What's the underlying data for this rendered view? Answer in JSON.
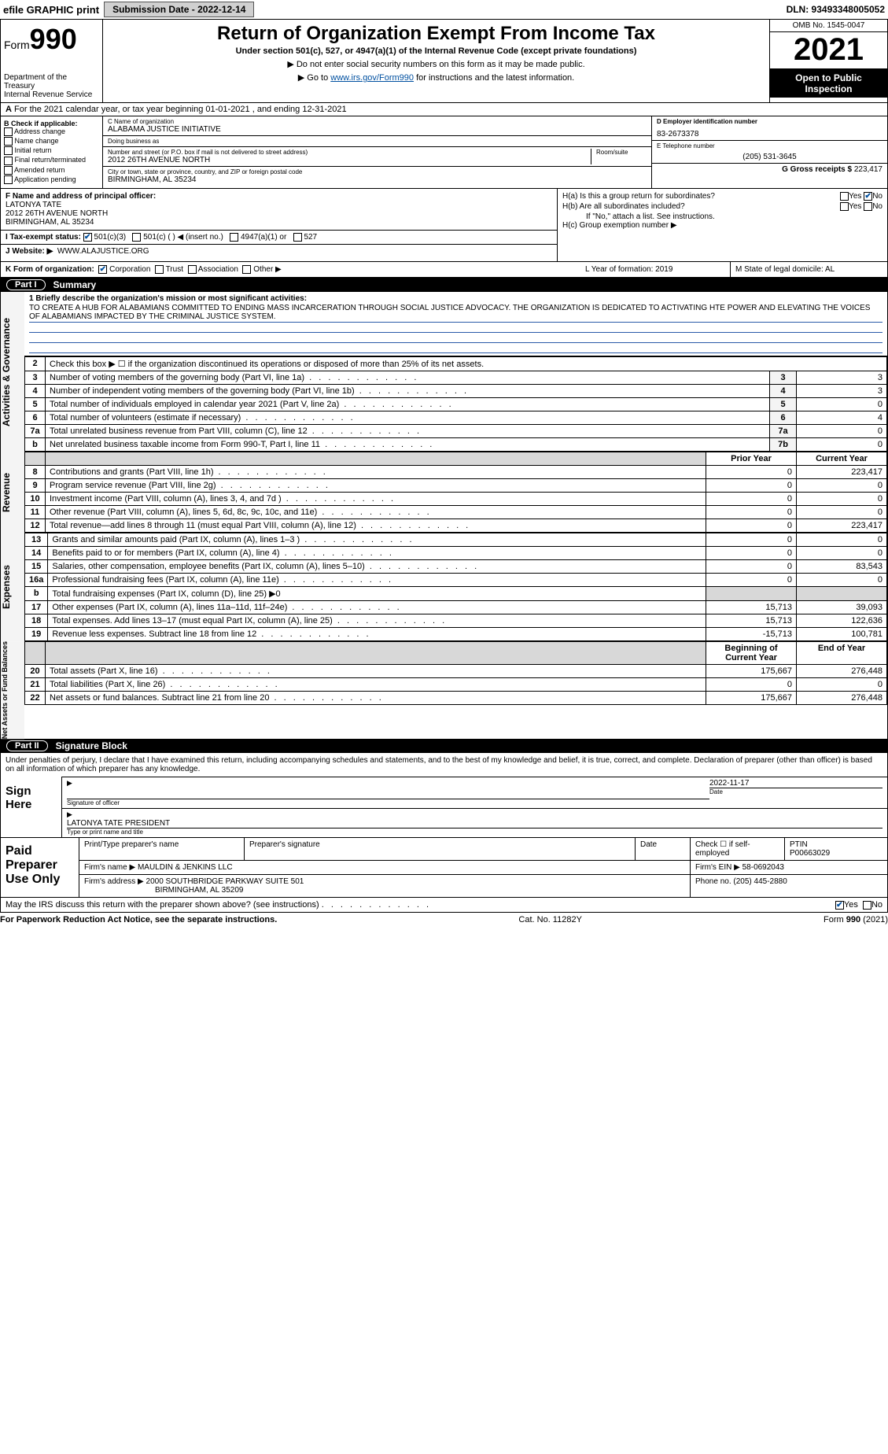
{
  "topbar": {
    "efile": "efile GRAPHIC print",
    "submission_btn": "Submission Date - 2022-12-14",
    "dln": "DLN: 93493348005052"
  },
  "header": {
    "form_prefix": "Form",
    "form_number": "990",
    "dept": "Department of the Treasury",
    "irs": "Internal Revenue Service",
    "title": "Return of Organization Exempt From Income Tax",
    "subtitle": "Under section 501(c), 527, or 4947(a)(1) of the Internal Revenue Code (except private foundations)",
    "note1": "▶ Do not enter social security numbers on this form as it may be made public.",
    "note2_pre": "▶ Go to ",
    "note2_link": "www.irs.gov/Form990",
    "note2_post": " for instructions and the latest information.",
    "omb": "OMB No. 1545-0047",
    "year": "2021",
    "inspect": "Open to Public Inspection"
  },
  "row_a": "For the 2021 calendar year, or tax year beginning 01-01-2021     , and ending 12-31-2021",
  "section_b": {
    "label": "B Check if applicable:",
    "opts": [
      "Address change",
      "Name change",
      "Initial return",
      "Final return/terminated",
      "Amended return",
      "Application pending"
    ]
  },
  "section_c": {
    "name_lbl": "C Name of organization",
    "name": "ALABAMA JUSTICE INITIATIVE",
    "dba_lbl": "Doing business as",
    "dba": "",
    "addr_lbl": "Number and street (or P.O. box if mail is not delivered to street address)",
    "room_lbl": "Room/suite",
    "addr": "2012 26TH AVENUE NORTH",
    "city_lbl": "City or town, state or province, country, and ZIP or foreign postal code",
    "city": "BIRMINGHAM, AL  35234"
  },
  "section_d": {
    "lbl": "D Employer identification number",
    "val": "83-2673378"
  },
  "section_e": {
    "lbl": "E Telephone number",
    "val": "(205) 531-3645"
  },
  "section_g": {
    "lbl": "G Gross receipts $",
    "val": "223,417"
  },
  "section_f": {
    "lbl": "F  Name and address of principal officer:",
    "name": "LATONYA TATE",
    "addr1": "2012 26TH AVENUE NORTH",
    "addr2": "BIRMINGHAM, AL  35234"
  },
  "section_h": {
    "a": "H(a)  Is this a group return for subordinates?",
    "b": "H(b)  Are all subordinates included?",
    "note": "If \"No,\" attach a list. See instructions.",
    "c": "H(c)  Group exemption number ▶"
  },
  "section_i": {
    "lbl": "I  Tax-exempt status:",
    "opts": [
      "501(c)(3)",
      "501(c) (   ) ◀ (insert no.)",
      "4947(a)(1) or",
      "527"
    ]
  },
  "section_j": {
    "lbl": "J  Website: ▶",
    "val": "WWW.ALAJUSTICE.ORG"
  },
  "section_k": {
    "lbl": "K Form of organization:",
    "opts": [
      "Corporation",
      "Trust",
      "Association",
      "Other ▶"
    ],
    "l": "L Year of formation: 2019",
    "m": "M State of legal domicile: AL"
  },
  "part1": {
    "num": "Part I",
    "title": "Summary"
  },
  "mission": {
    "lbl": "1  Briefly describe the organization's mission or most significant activities:",
    "text": "TO CREATE A HUB FOR ALABAMIANS COMMITTED TO ENDING MASS INCARCERATION THROUGH SOCIAL JUSTICE ADVOCACY. THE ORGANIZATION IS DEDICATED TO ACTIVATING HTE POWER AND ELEVATING THE VOICES OF ALABAMIANS IMPACTED BY THE CRIMINAL JUSTICE SYSTEM."
  },
  "governance": {
    "side": "Activities & Governance",
    "rows": [
      {
        "n": "2",
        "t": "Check this box ▶ ☐  if the organization discontinued its operations or disposed of more than 25% of its net assets.",
        "k": "",
        "v": ""
      },
      {
        "n": "3",
        "t": "Number of voting members of the governing body (Part VI, line 1a)",
        "k": "3",
        "v": "3"
      },
      {
        "n": "4",
        "t": "Number of independent voting members of the governing body (Part VI, line 1b)",
        "k": "4",
        "v": "3"
      },
      {
        "n": "5",
        "t": "Total number of individuals employed in calendar year 2021 (Part V, line 2a)",
        "k": "5",
        "v": "0"
      },
      {
        "n": "6",
        "t": "Total number of volunteers (estimate if necessary)",
        "k": "6",
        "v": "4"
      },
      {
        "n": "7a",
        "t": "Total unrelated business revenue from Part VIII, column (C), line 12",
        "k": "7a",
        "v": "0"
      },
      {
        "n": "b",
        "t": "Net unrelated business taxable income from Form 990-T, Part I, line 11",
        "k": "7b",
        "v": "0"
      }
    ]
  },
  "revenue": {
    "side": "Revenue",
    "hdr_prior": "Prior Year",
    "hdr_curr": "Current Year",
    "rows": [
      {
        "n": "8",
        "t": "Contributions and grants (Part VIII, line 1h)",
        "p": "0",
        "c": "223,417"
      },
      {
        "n": "9",
        "t": "Program service revenue (Part VIII, line 2g)",
        "p": "0",
        "c": "0"
      },
      {
        "n": "10",
        "t": "Investment income (Part VIII, column (A), lines 3, 4, and 7d )",
        "p": "0",
        "c": "0"
      },
      {
        "n": "11",
        "t": "Other revenue (Part VIII, column (A), lines 5, 6d, 8c, 9c, 10c, and 11e)",
        "p": "0",
        "c": "0"
      },
      {
        "n": "12",
        "t": "Total revenue—add lines 8 through 11 (must equal Part VIII, column (A), line 12)",
        "p": "0",
        "c": "223,417"
      }
    ]
  },
  "expenses": {
    "side": "Expenses",
    "rows": [
      {
        "n": "13",
        "t": "Grants and similar amounts paid (Part IX, column (A), lines 1–3 )",
        "p": "0",
        "c": "0"
      },
      {
        "n": "14",
        "t": "Benefits paid to or for members (Part IX, column (A), line 4)",
        "p": "0",
        "c": "0"
      },
      {
        "n": "15",
        "t": "Salaries, other compensation, employee benefits (Part IX, column (A), lines 5–10)",
        "p": "0",
        "c": "83,543"
      },
      {
        "n": "16a",
        "t": "Professional fundraising fees (Part IX, column (A), line 11e)",
        "p": "0",
        "c": "0"
      },
      {
        "n": "b",
        "t": "Total fundraising expenses (Part IX, column (D), line 25) ▶0",
        "p": "",
        "c": "",
        "shade": true
      },
      {
        "n": "17",
        "t": "Other expenses (Part IX, column (A), lines 11a–11d, 11f–24e)",
        "p": "15,713",
        "c": "39,093"
      },
      {
        "n": "18",
        "t": "Total expenses. Add lines 13–17 (must equal Part IX, column (A), line 25)",
        "p": "15,713",
        "c": "122,636"
      },
      {
        "n": "19",
        "t": "Revenue less expenses. Subtract line 18 from line 12",
        "p": "-15,713",
        "c": "100,781"
      }
    ]
  },
  "netassets": {
    "side": "Net Assets or Fund Balances",
    "hdr_beg": "Beginning of Current Year",
    "hdr_end": "End of Year",
    "rows": [
      {
        "n": "20",
        "t": "Total assets (Part X, line 16)",
        "p": "175,667",
        "c": "276,448"
      },
      {
        "n": "21",
        "t": "Total liabilities (Part X, line 26)",
        "p": "0",
        "c": "0"
      },
      {
        "n": "22",
        "t": "Net assets or fund balances. Subtract line 21 from line 20",
        "p": "175,667",
        "c": "276,448"
      }
    ]
  },
  "part2": {
    "num": "Part II",
    "title": "Signature Block"
  },
  "sig": {
    "decl": "Under penalties of perjury, I declare that I have examined this return, including accompanying schedules and statements, and to the best of my knowledge and belief, it is true, correct, and complete. Declaration of preparer (other than officer) is based on all information of which preparer has any knowledge.",
    "sign_here": "Sign Here",
    "sig_officer": "Signature of officer",
    "date": "2022-11-17",
    "date_lbl": "Date",
    "name": "LATONYA TATE PRESIDENT",
    "name_lbl": "Type or print name and title"
  },
  "prep": {
    "label": "Paid Preparer Use Only",
    "h1": "Print/Type preparer's name",
    "h2": "Preparer's signature",
    "h3": "Date",
    "h4": "Check ☐ if self-employed",
    "h5": "PTIN",
    "ptin": "P00663029",
    "firm_lbl": "Firm's name    ▶",
    "firm": "MAULDIN & JENKINS LLC",
    "ein_lbl": "Firm's EIN ▶",
    "ein": "58-0692043",
    "addr_lbl": "Firm's address ▶",
    "addr1": "2000 SOUTHBRIDGE PARKWAY SUITE 501",
    "addr2": "BIRMINGHAM, AL  35209",
    "phone_lbl": "Phone no.",
    "phone": "(205) 445-2880"
  },
  "discuss": "May the IRS discuss this return with the preparer shown above? (see instructions)",
  "footer": {
    "pra": "For Paperwork Reduction Act Notice, see the separate instructions.",
    "cat": "Cat. No. 11282Y",
    "form": "Form 990 (2021)"
  },
  "style": {
    "colors": {
      "black": "#000000",
      "white": "#ffffff",
      "link": "#0050a0",
      "shade": "#d8d8d8",
      "key_bg": "#f4f4f4",
      "btn_bg": "#d0d0d0",
      "line_blue": "#2a5aa8"
    },
    "fonts": {
      "base_pt": 11,
      "title_pt": 24,
      "year_pt": 40,
      "form_no_pt": 36
    }
  }
}
